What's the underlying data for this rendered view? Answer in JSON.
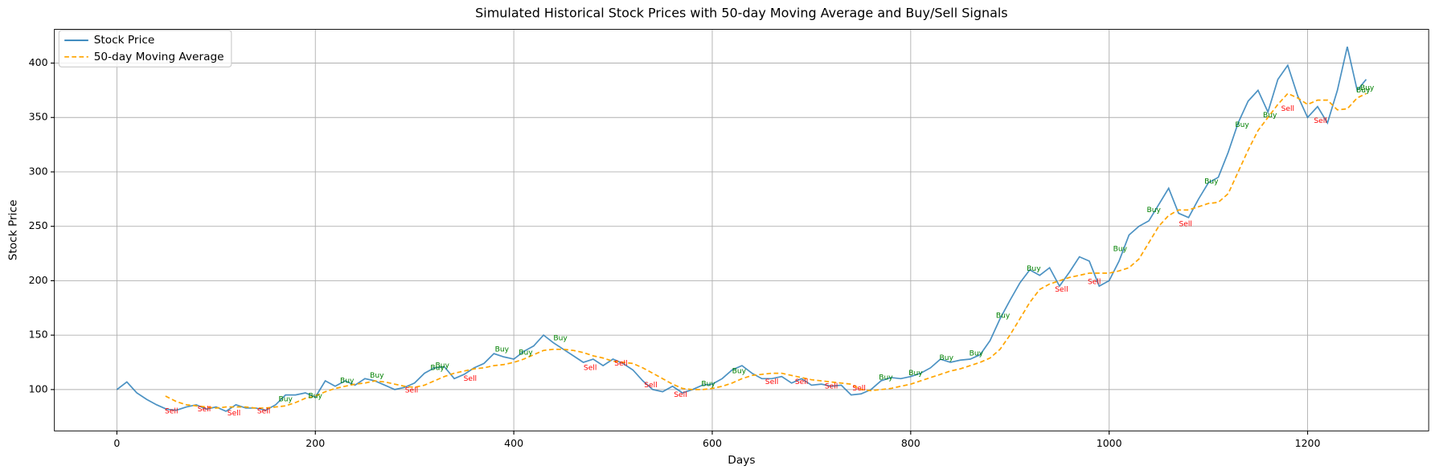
{
  "chart_data": {
    "type": "line",
    "title": "Simulated Historical Stock Prices with 50-day Moving Average and Buy/Sell Signals",
    "xlabel": "Days",
    "ylabel": "Stock Price",
    "xlim": [
      -63,
      1322
    ],
    "ylim": [
      62,
      431
    ],
    "xticks": [
      0,
      200,
      400,
      600,
      800,
      1000,
      1200
    ],
    "yticks": [
      100,
      150,
      200,
      250,
      300,
      350,
      400
    ],
    "grid": true,
    "legend": "upper left",
    "series": [
      {
        "name": "Stock Price",
        "color": "#1f77b4",
        "style": "solid",
        "x": [
          0,
          10,
          20,
          30,
          40,
          50,
          60,
          70,
          80,
          90,
          100,
          110,
          120,
          130,
          140,
          150,
          160,
          170,
          180,
          190,
          200,
          210,
          220,
          230,
          240,
          250,
          260,
          270,
          280,
          290,
          300,
          310,
          320,
          330,
          340,
          350,
          360,
          370,
          380,
          390,
          400,
          410,
          420,
          430,
          440,
          450,
          460,
          470,
          480,
          490,
          500,
          510,
          520,
          530,
          540,
          550,
          560,
          570,
          580,
          590,
          600,
          610,
          620,
          630,
          640,
          650,
          660,
          670,
          680,
          690,
          700,
          710,
          720,
          730,
          740,
          750,
          760,
          770,
          780,
          790,
          800,
          810,
          820,
          830,
          840,
          850,
          860,
          870,
          880,
          890,
          900,
          910,
          920,
          930,
          940,
          950,
          960,
          970,
          980,
          990,
          1000,
          1010,
          1020,
          1030,
          1040,
          1050,
          1060,
          1070,
          1080,
          1090,
          1100,
          1110,
          1120,
          1130,
          1140,
          1150,
          1160,
          1170,
          1180,
          1190,
          1200,
          1210,
          1220,
          1230,
          1240,
          1250,
          1259
        ],
        "values": [
          100,
          107,
          97,
          91,
          86,
          82,
          81,
          84,
          86,
          82,
          84,
          80,
          86,
          83,
          83,
          81,
          86,
          95,
          95,
          97,
          93,
          108,
          103,
          108,
          104,
          110,
          108,
          104,
          100,
          102,
          106,
          115,
          120,
          121,
          110,
          114,
          120,
          124,
          133,
          130,
          128,
          135,
          140,
          150,
          143,
          137,
          131,
          125,
          128,
          122,
          128,
          124,
          118,
          108,
          100,
          98,
          103,
          97,
          100,
          104,
          105,
          110,
          118,
          122,
          115,
          110,
          110,
          112,
          106,
          110,
          104,
          105,
          103,
          104,
          95,
          96,
          100,
          108,
          111,
          110,
          112,
          115,
          120,
          128,
          125,
          127,
          128,
          132,
          145,
          165,
          182,
          198,
          210,
          205,
          212,
          195,
          208,
          222,
          218,
          195,
          200,
          218,
          242,
          250,
          255,
          270,
          285,
          262,
          258,
          275,
          290,
          295,
          318,
          345,
          365,
          375,
          355,
          385,
          398,
          370,
          350,
          360,
          345,
          375,
          415,
          375,
          385
        ]
      },
      {
        "name": "50-day Moving Average",
        "color": "#ffa500",
        "style": "dashed",
        "x": [
          49,
          60,
          70,
          80,
          90,
          100,
          110,
          120,
          130,
          140,
          150,
          160,
          170,
          180,
          190,
          200,
          210,
          220,
          230,
          240,
          250,
          260,
          270,
          280,
          290,
          300,
          310,
          320,
          330,
          340,
          350,
          360,
          370,
          380,
          390,
          400,
          410,
          420,
          430,
          440,
          450,
          460,
          470,
          480,
          490,
          500,
          510,
          520,
          530,
          540,
          550,
          560,
          570,
          580,
          590,
          600,
          610,
          620,
          630,
          640,
          650,
          660,
          670,
          680,
          690,
          700,
          710,
          720,
          730,
          740,
          750,
          760,
          770,
          780,
          790,
          800,
          810,
          820,
          830,
          840,
          850,
          860,
          870,
          880,
          890,
          900,
          910,
          920,
          930,
          940,
          950,
          960,
          970,
          980,
          990,
          1000,
          1010,
          1020,
          1030,
          1040,
          1050,
          1060,
          1070,
          1080,
          1090,
          1100,
          1110,
          1120,
          1130,
          1140,
          1150,
          1160,
          1170,
          1180,
          1190,
          1200,
          1210,
          1220,
          1230,
          1240,
          1250,
          1259
        ],
        "values": [
          94,
          89,
          86,
          85,
          84,
          83,
          84,
          84,
          84,
          83,
          83,
          84,
          85,
          88,
          92,
          94,
          98,
          101,
          103,
          105,
          106,
          108,
          107,
          105,
          103,
          102,
          104,
          108,
          112,
          115,
          117,
          119,
          120,
          122,
          123,
          125,
          128,
          132,
          136,
          137,
          137,
          136,
          134,
          131,
          129,
          126,
          125,
          124,
          120,
          115,
          110,
          105,
          101,
          100,
          100,
          101,
          103,
          106,
          110,
          113,
          114,
          115,
          115,
          113,
          111,
          109,
          108,
          107,
          106,
          105,
          100,
          99,
          100,
          101,
          103,
          105,
          108,
          111,
          114,
          117,
          119,
          122,
          125,
          129,
          137,
          150,
          165,
          180,
          192,
          197,
          200,
          203,
          205,
          207,
          207,
          207,
          209,
          212,
          220,
          235,
          250,
          260,
          265,
          265,
          268,
          271,
          272,
          280,
          300,
          320,
          338,
          350,
          362,
          372,
          368,
          362,
          366,
          366,
          357,
          358,
          368,
          372
        ]
      }
    ],
    "annotations": [
      {
        "x": 55,
        "y": 80,
        "label": "Sell",
        "color": "red"
      },
      {
        "x": 88,
        "y": 82,
        "label": "Sell",
        "color": "red"
      },
      {
        "x": 118,
        "y": 78,
        "label": "Sell",
        "color": "red"
      },
      {
        "x": 148,
        "y": 80,
        "label": "Sell",
        "color": "red"
      },
      {
        "x": 170,
        "y": 91,
        "label": "Buy",
        "color": "green"
      },
      {
        "x": 200,
        "y": 94,
        "label": "Buy",
        "color": "green"
      },
      {
        "x": 232,
        "y": 108,
        "label": "Buy",
        "color": "green"
      },
      {
        "x": 262,
        "y": 113,
        "label": "Buy",
        "color": "green"
      },
      {
        "x": 297,
        "y": 99,
        "label": "Sell",
        "color": "red"
      },
      {
        "x": 323,
        "y": 120,
        "label": "Buy",
        "color": "green"
      },
      {
        "x": 328,
        "y": 122,
        "label": "Buy",
        "color": "green"
      },
      {
        "x": 356,
        "y": 110,
        "label": "Sell",
        "color": "red"
      },
      {
        "x": 388,
        "y": 137,
        "label": "Buy",
        "color": "green"
      },
      {
        "x": 412,
        "y": 134,
        "label": "Buy",
        "color": "green"
      },
      {
        "x": 447,
        "y": 147,
        "label": "Buy",
        "color": "green"
      },
      {
        "x": 477,
        "y": 120,
        "label": "Sell",
        "color": "red"
      },
      {
        "x": 508,
        "y": 124,
        "label": "Sell",
        "color": "red"
      },
      {
        "x": 538,
        "y": 104,
        "label": "Sell",
        "color": "red"
      },
      {
        "x": 568,
        "y": 95,
        "label": "Sell",
        "color": "red"
      },
      {
        "x": 596,
        "y": 105,
        "label": "Buy",
        "color": "green"
      },
      {
        "x": 627,
        "y": 117,
        "label": "Buy",
        "color": "green"
      },
      {
        "x": 660,
        "y": 107,
        "label": "Sell",
        "color": "red"
      },
      {
        "x": 690,
        "y": 107,
        "label": "Sell",
        "color": "red"
      },
      {
        "x": 720,
        "y": 103,
        "label": "Sell",
        "color": "red"
      },
      {
        "x": 748,
        "y": 101,
        "label": "Sell",
        "color": "red"
      },
      {
        "x": 775,
        "y": 111,
        "label": "Buy",
        "color": "green"
      },
      {
        "x": 805,
        "y": 115,
        "label": "Buy",
        "color": "green"
      },
      {
        "x": 836,
        "y": 129,
        "label": "Buy",
        "color": "green"
      },
      {
        "x": 866,
        "y": 133,
        "label": "Buy",
        "color": "green"
      },
      {
        "x": 893,
        "y": 168,
        "label": "Buy",
        "color": "green"
      },
      {
        "x": 924,
        "y": 211,
        "label": "Buy",
        "color": "green"
      },
      {
        "x": 952,
        "y": 192,
        "label": "Sell",
        "color": "red"
      },
      {
        "x": 985,
        "y": 199,
        "label": "Sell",
        "color": "red"
      },
      {
        "x": 1011,
        "y": 229,
        "label": "Buy",
        "color": "green"
      },
      {
        "x": 1045,
        "y": 265,
        "label": "Buy",
        "color": "green"
      },
      {
        "x": 1077,
        "y": 252,
        "label": "Sell",
        "color": "red"
      },
      {
        "x": 1103,
        "y": 291,
        "label": "Buy",
        "color": "green"
      },
      {
        "x": 1134,
        "y": 343,
        "label": "Buy",
        "color": "green"
      },
      {
        "x": 1162,
        "y": 352,
        "label": "Buy",
        "color": "green"
      },
      {
        "x": 1180,
        "y": 358,
        "label": "Sell",
        "color": "red"
      },
      {
        "x": 1213,
        "y": 347,
        "label": "Sell",
        "color": "red"
      },
      {
        "x": 1256,
        "y": 375,
        "label": "Buy",
        "color": "green"
      },
      {
        "x": 1260,
        "y": 377,
        "label": "Buy",
        "color": "green"
      }
    ]
  }
}
